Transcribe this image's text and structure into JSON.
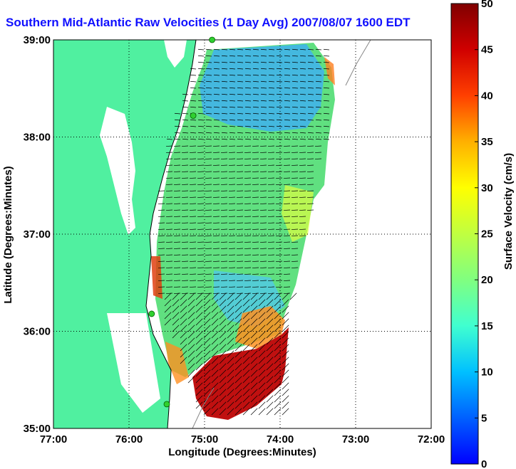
{
  "title": "Southern Mid-Atlantic Raw Velocities (1 Day Avg) 2007/08/07 1600 EDT",
  "map": {
    "x_axis_label": "Longitude (Degrees:Minutes)",
    "y_axis_label": "Latitude (Degrees:Minutes)",
    "x_ticks": [
      "77:00",
      "76:00",
      "75:00",
      "74:00",
      "73:00",
      "72:00"
    ],
    "y_ticks": [
      "39:00",
      "38:00",
      "37:00",
      "36:00",
      "35:00"
    ],
    "x_range": [
      -77,
      -72
    ],
    "y_range": [
      35,
      39
    ],
    "land_color": "#50f0a0",
    "water_color": "#ffffff",
    "station_color": "#30d030",
    "stations": [
      {
        "lon": -74.9,
        "lat": 39.0
      },
      {
        "lon": -75.15,
        "lat": 38.22
      },
      {
        "lon": -75.7,
        "lat": 36.18
      },
      {
        "lon": -75.5,
        "lat": 35.25
      }
    ]
  },
  "colorbar": {
    "label": "Surface Velocity (cm/s)",
    "ticks": [
      "0",
      "5",
      "10",
      "15",
      "20",
      "25",
      "30",
      "35",
      "40",
      "45",
      "50"
    ],
    "min": 0,
    "max": 50,
    "colormap": [
      "#0000ff",
      "#00a0ff",
      "#00ffff",
      "#60ff90",
      "#c0ff30",
      "#ffff00",
      "#ffa000",
      "#ff3000",
      "#d00000",
      "#800000"
    ]
  }
}
